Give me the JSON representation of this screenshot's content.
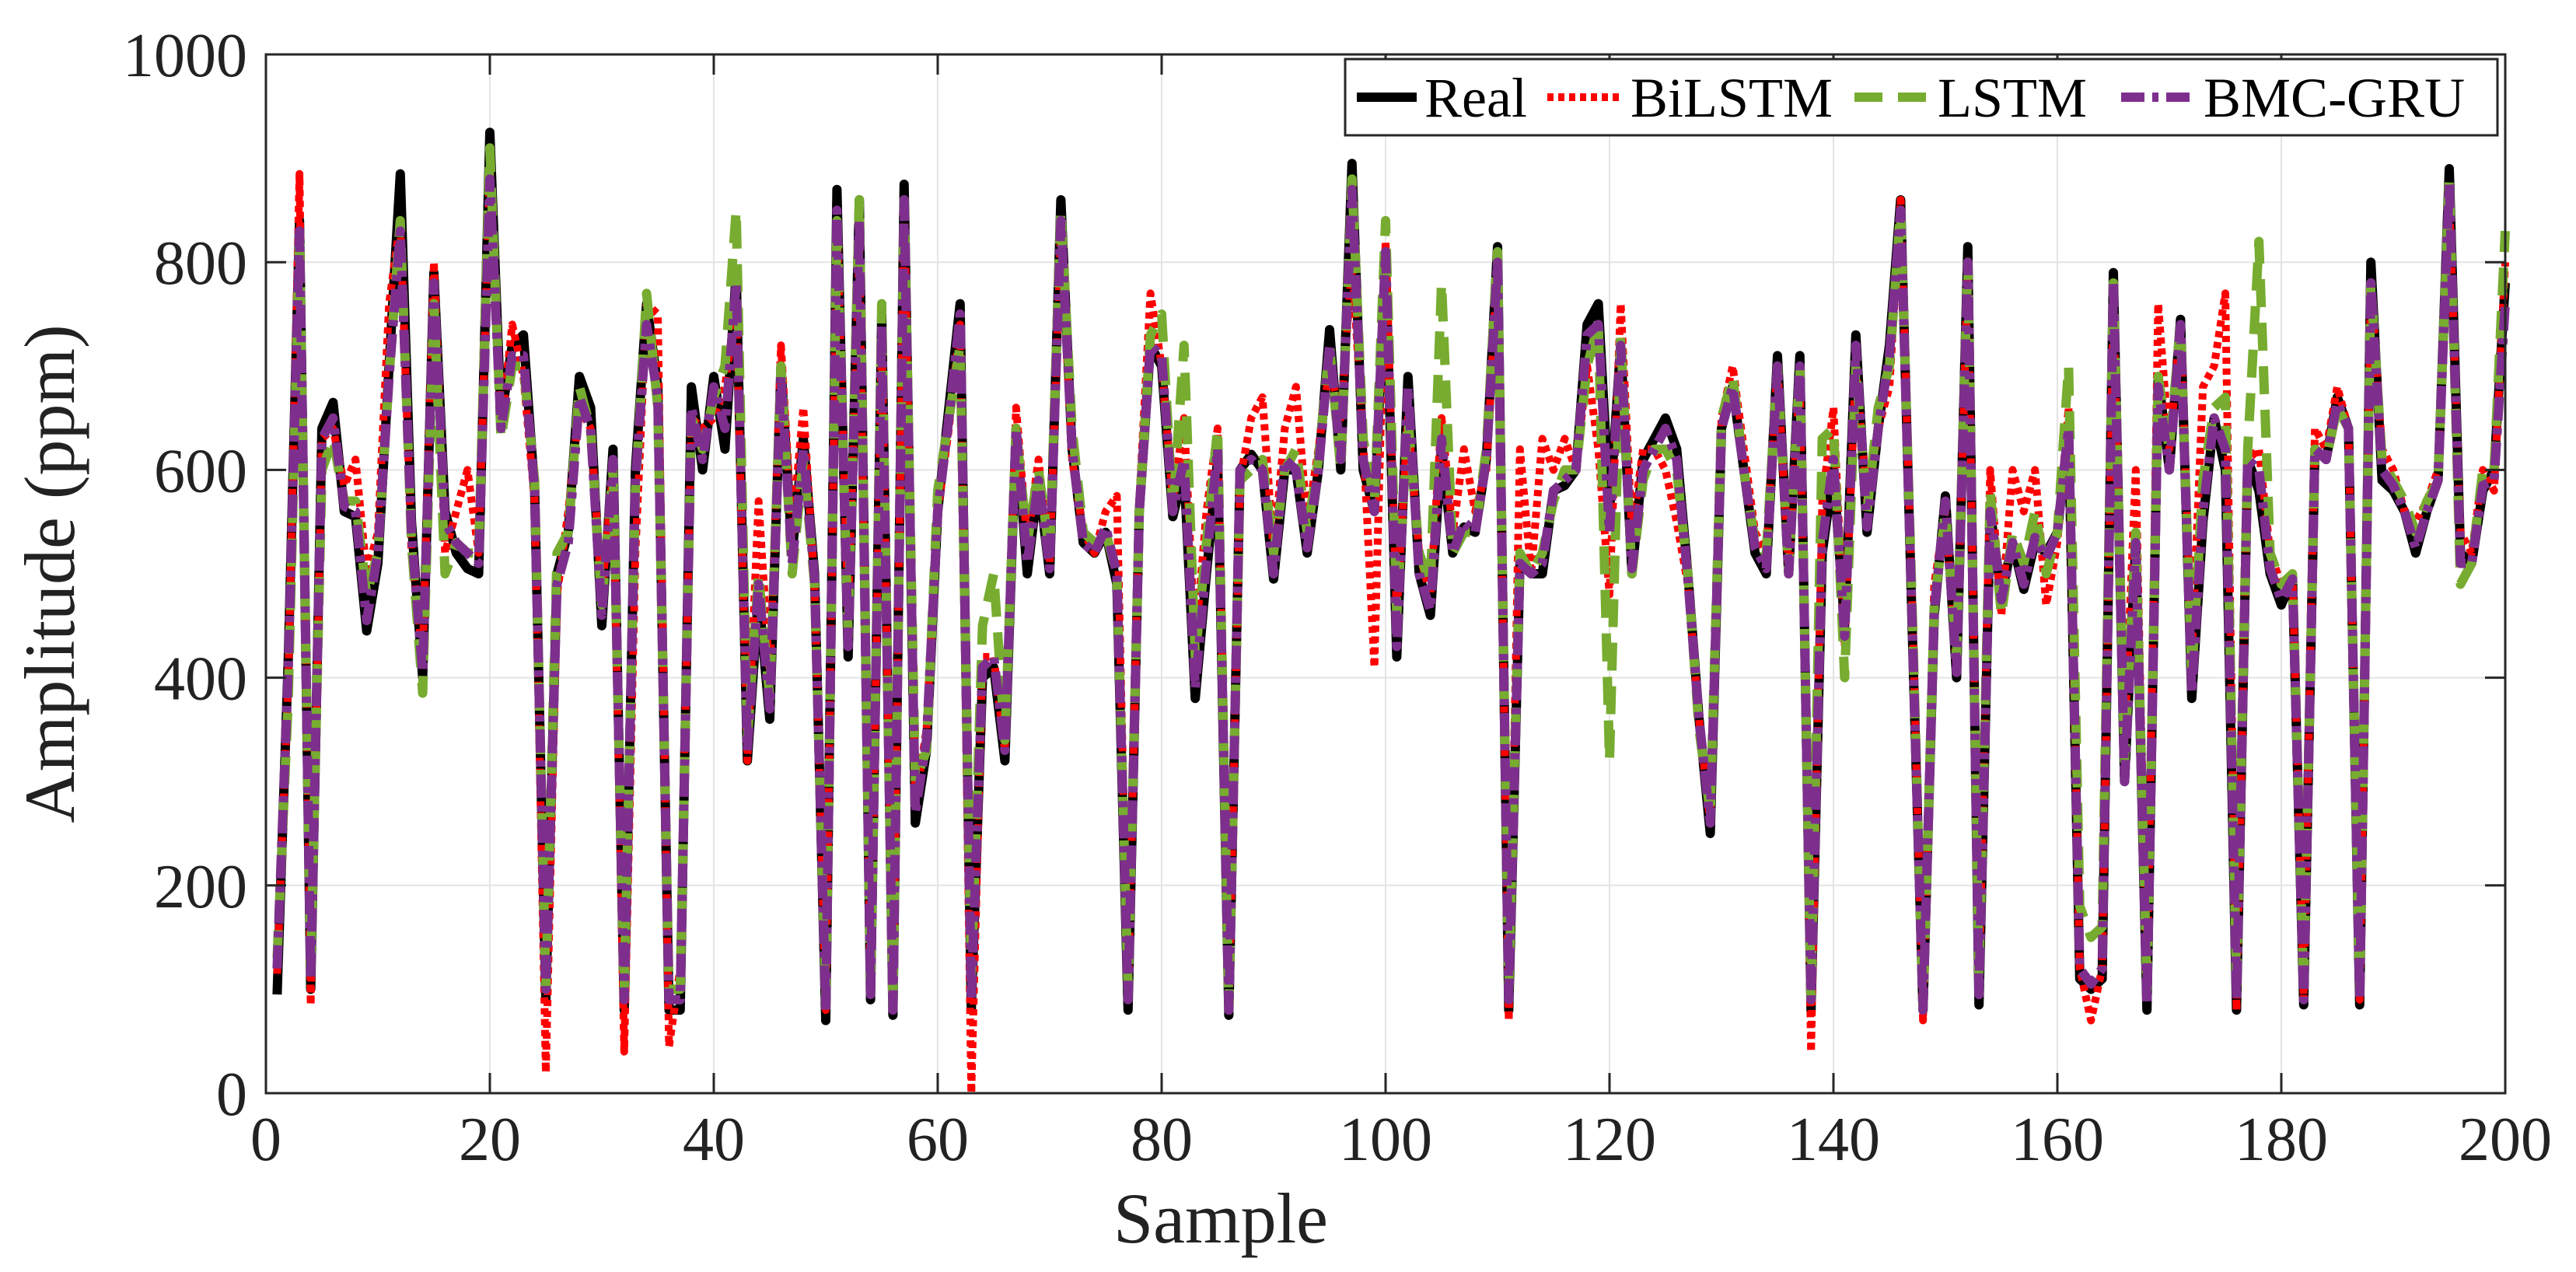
{
  "chart_data": {
    "type": "line",
    "title": "",
    "xlabel": "Sample",
    "ylabel": "Amplitude  (ppm)",
    "xlim": [
      0,
      200
    ],
    "ylim": [
      0,
      1000
    ],
    "xticks": [
      0,
      20,
      40,
      60,
      80,
      100,
      120,
      140,
      160,
      180,
      200
    ],
    "yticks": [
      0,
      200,
      400,
      600,
      800,
      1000
    ],
    "grid": true,
    "legend_position": "top-right",
    "x": [
      1,
      2,
      3,
      4,
      5,
      6,
      7,
      8,
      9,
      10,
      11,
      12,
      13,
      14,
      15,
      16,
      17,
      18,
      19,
      20,
      21,
      22,
      23,
      24,
      25,
      26,
      27,
      28,
      29,
      30,
      31,
      32,
      33,
      34,
      35,
      36,
      37,
      38,
      39,
      40,
      41,
      42,
      43,
      44,
      45,
      46,
      47,
      48,
      49,
      50,
      51,
      52,
      53,
      54,
      55,
      56,
      57,
      58,
      59,
      60,
      61,
      62,
      63,
      64,
      65,
      66,
      67,
      68,
      69,
      70,
      71,
      72,
      73,
      74,
      75,
      76,
      77,
      78,
      79,
      80,
      81,
      82,
      83,
      84,
      85,
      86,
      87,
      88,
      89,
      90,
      91,
      92,
      93,
      94,
      95,
      96,
      97,
      98,
      99,
      100,
      101,
      102,
      103,
      104,
      105,
      106,
      107,
      108,
      109,
      110,
      111,
      112,
      113,
      114,
      115,
      116,
      117,
      118,
      119,
      120,
      121,
      122,
      123,
      124,
      125,
      126,
      127,
      128,
      129,
      130,
      131,
      132,
      133,
      134,
      135,
      136,
      137,
      138,
      139,
      140,
      141,
      142,
      143,
      144,
      145,
      146,
      147,
      148,
      149,
      150,
      151,
      152,
      153,
      154,
      155,
      156,
      157,
      158,
      159,
      160,
      161,
      162,
      163,
      164,
      165,
      166,
      167,
      168,
      169,
      170,
      171,
      172,
      173,
      174,
      175,
      176,
      177,
      178,
      179,
      180,
      181,
      182,
      183,
      184,
      185,
      186,
      187,
      188,
      189,
      190,
      191,
      192,
      193,
      194,
      195,
      196,
      197,
      198,
      199,
      200
    ],
    "series": [
      {
        "name": "Real",
        "color": "#000000",
        "style": "solid",
        "values": [
          95,
          420,
          840,
          100,
          640,
          665,
          560,
          555,
          445,
          510,
          700,
          885,
          550,
          400,
          790,
          560,
          520,
          505,
          500,
          925,
          650,
          720,
          730,
          580,
          90,
          500,
          540,
          690,
          660,
          450,
          620,
          80,
          600,
          760,
          680,
          80,
          80,
          680,
          600,
          690,
          620,
          790,
          320,
          480,
          360,
          700,
          520,
          630,
          500,
          70,
          870,
          420,
          860,
          90,
          750,
          75,
          875,
          260,
          330,
          560,
          660,
          760,
          80,
          400,
          410,
          320,
          640,
          500,
          590,
          500,
          860,
          620,
          530,
          520,
          540,
          490,
          80,
          560,
          720,
          700,
          555,
          600,
          380,
          500,
          610,
          75,
          600,
          615,
          600,
          495,
          600,
          600,
          520,
          600,
          735,
          600,
          895,
          600,
          560,
          800,
          420,
          690,
          500,
          460,
          620,
          520,
          545,
          540,
          610,
          815,
          80,
          510,
          500,
          500,
          580,
          585,
          600,
          740,
          760,
          560,
          720,
          500,
          610,
          630,
          650,
          620,
          500,
          360,
          250,
          640,
          680,
          600,
          520,
          500,
          710,
          500,
          710,
          80,
          520,
          600,
          450,
          730,
          540,
          640,
          720,
          860,
          460,
          80,
          460,
          575,
          400,
          815,
          85,
          560,
          480,
          530,
          485,
          530,
          520,
          540,
          640,
          110,
          100,
          110,
          790,
          300,
          530,
          80,
          690,
          600,
          745,
          380,
          550,
          650,
          600,
          80,
          610,
          580,
          500,
          470,
          495,
          85,
          620,
          610,
          670,
          640,
          85,
          800,
          590,
          580,
          560,
          520,
          560,
          590,
          890,
          520,
          510,
          580,
          600,
          780
        ]
      },
      {
        "name": "BiLSTM",
        "color": "#ff0000",
        "style": "dotted",
        "values": [
          115,
          400,
          885,
          85,
          630,
          640,
          585,
          610,
          500,
          540,
          760,
          840,
          520,
          420,
          800,
          520,
          560,
          600,
          520,
          890,
          640,
          740,
          690,
          570,
          20,
          480,
          560,
          660,
          640,
          480,
          600,
          40,
          520,
          760,
          750,
          45,
          120,
          650,
          640,
          650,
          680,
          760,
          320,
          570,
          400,
          720,
          540,
          660,
          490,
          80,
          840,
          460,
          810,
          100,
          730,
          80,
          860,
          280,
          350,
          560,
          640,
          740,
          0,
          420,
          420,
          330,
          660,
          530,
          610,
          510,
          830,
          610,
          540,
          520,
          560,
          575,
          90,
          570,
          770,
          700,
          570,
          650,
          430,
          560,
          640,
          80,
          590,
          650,
          670,
          520,
          640,
          680,
          550,
          620,
          700,
          650,
          800,
          630,
          410,
          820,
          460,
          650,
          520,
          480,
          650,
          540,
          620,
          560,
          600,
          800,
          70,
          620,
          500,
          630,
          600,
          630,
          600,
          700,
          620,
          480,
          760,
          540,
          620,
          620,
          600,
          550,
          490,
          360,
          260,
          650,
          700,
          620,
          540,
          520,
          700,
          500,
          690,
          40,
          570,
          660,
          430,
          700,
          570,
          640,
          680,
          860,
          480,
          70,
          490,
          560,
          410,
          800,
          100,
          600,
          460,
          600,
          560,
          600,
          470,
          530,
          660,
          120,
          70,
          120,
          760,
          340,
          600,
          90,
          760,
          620,
          740,
          420,
          680,
          700,
          770,
          80,
          610,
          620,
          520,
          490,
          500,
          90,
          640,
          620,
          680,
          640,
          90,
          780,
          620,
          600,
          560,
          550,
          570,
          600,
          860,
          540,
          520,
          600,
          580,
          800
        ]
      },
      {
        "name": "LSTM",
        "color": "#77ac30",
        "style": "dashed",
        "values": [
          130,
          380,
          830,
          120,
          600,
          630,
          570,
          570,
          480,
          520,
          690,
          840,
          530,
          385,
          760,
          500,
          530,
          520,
          520,
          910,
          630,
          700,
          700,
          590,
          100,
          520,
          540,
          680,
          640,
          470,
          600,
          100,
          580,
          770,
          660,
          100,
          100,
          650,
          620,
          670,
          700,
          850,
          340,
          500,
          380,
          700,
          500,
          610,
          490,
          90,
          840,
          440,
          860,
          100,
          760,
          80,
          860,
          300,
          330,
          580,
          650,
          720,
          110,
          450,
          500,
          340,
          640,
          530,
          600,
          520,
          850,
          640,
          540,
          530,
          540,
          500,
          100,
          560,
          730,
          750,
          560,
          720,
          420,
          530,
          640,
          80,
          590,
          600,
          610,
          520,
          600,
          620,
          540,
          610,
          720,
          600,
          880,
          630,
          570,
          840,
          460,
          650,
          520,
          490,
          780,
          520,
          540,
          540,
          620,
          810,
          100,
          520,
          500,
          520,
          570,
          600,
          600,
          700,
          740,
          320,
          730,
          500,
          590,
          620,
          620,
          600,
          500,
          350,
          270,
          650,
          690,
          600,
          530,
          520,
          700,
          500,
          700,
          90,
          630,
          640,
          400,
          700,
          560,
          660,
          700,
          850,
          480,
          80,
          470,
          560,
          420,
          800,
          110,
          580,
          460,
          540,
          510,
          560,
          500,
          540,
          700,
          180,
          150,
          160,
          780,
          320,
          540,
          100,
          690,
          620,
          740,
          400,
          590,
          660,
          670,
          100,
          620,
          820,
          520,
          490,
          500,
          100,
          620,
          610,
          660,
          640,
          100,
          780,
          610,
          590,
          570,
          540,
          570,
          590,
          880,
          490,
          510,
          600,
          600,
          830
        ]
      },
      {
        "name": "BMC-GRU",
        "color": "#7e2f8e",
        "style": "dashdot",
        "values": [
          120,
          410,
          830,
          110,
          630,
          650,
          565,
          560,
          455,
          520,
          690,
          830,
          540,
          405,
          780,
          550,
          530,
          520,
          510,
          880,
          640,
          710,
          710,
          580,
          100,
          490,
          530,
          670,
          640,
          460,
          610,
          90,
          590,
          740,
          670,
          90,
          90,
          660,
          610,
          680,
          640,
          780,
          330,
          490,
          370,
          690,
          510,
          620,
          495,
          80,
          850,
          430,
          840,
          95,
          740,
          80,
          860,
          270,
          340,
          560,
          650,
          750,
          90,
          410,
          420,
          330,
          640,
          510,
          590,
          505,
          840,
          620,
          530,
          520,
          545,
          500,
          90,
          560,
          720,
          710,
          560,
          610,
          390,
          510,
          620,
          80,
          600,
          610,
          600,
          500,
          610,
          600,
          525,
          600,
          720,
          610,
          870,
          610,
          560,
          810,
          430,
          680,
          500,
          465,
          630,
          520,
          550,
          540,
          610,
          800,
          90,
          510,
          500,
          510,
          580,
          590,
          600,
          730,
          740,
          540,
          720,
          505,
          600,
          620,
          640,
          610,
          495,
          360,
          260,
          640,
          680,
          600,
          525,
          505,
          700,
          500,
          700,
          90,
          530,
          610,
          440,
          720,
          545,
          640,
          710,
          850,
          465,
          80,
          465,
          570,
          405,
          800,
          95,
          560,
          475,
          530,
          490,
          535,
          515,
          540,
          640,
          120,
          105,
          120,
          780,
          300,
          530,
          85,
          680,
          600,
          740,
          385,
          560,
          650,
          620,
          90,
          610,
          600,
          505,
          475,
          495,
          90,
          620,
          610,
          665,
          640,
          90,
          780,
          600,
          585,
          560,
          525,
          560,
          590,
          875,
          510,
          510,
          585,
          590,
          760
        ]
      }
    ]
  }
}
